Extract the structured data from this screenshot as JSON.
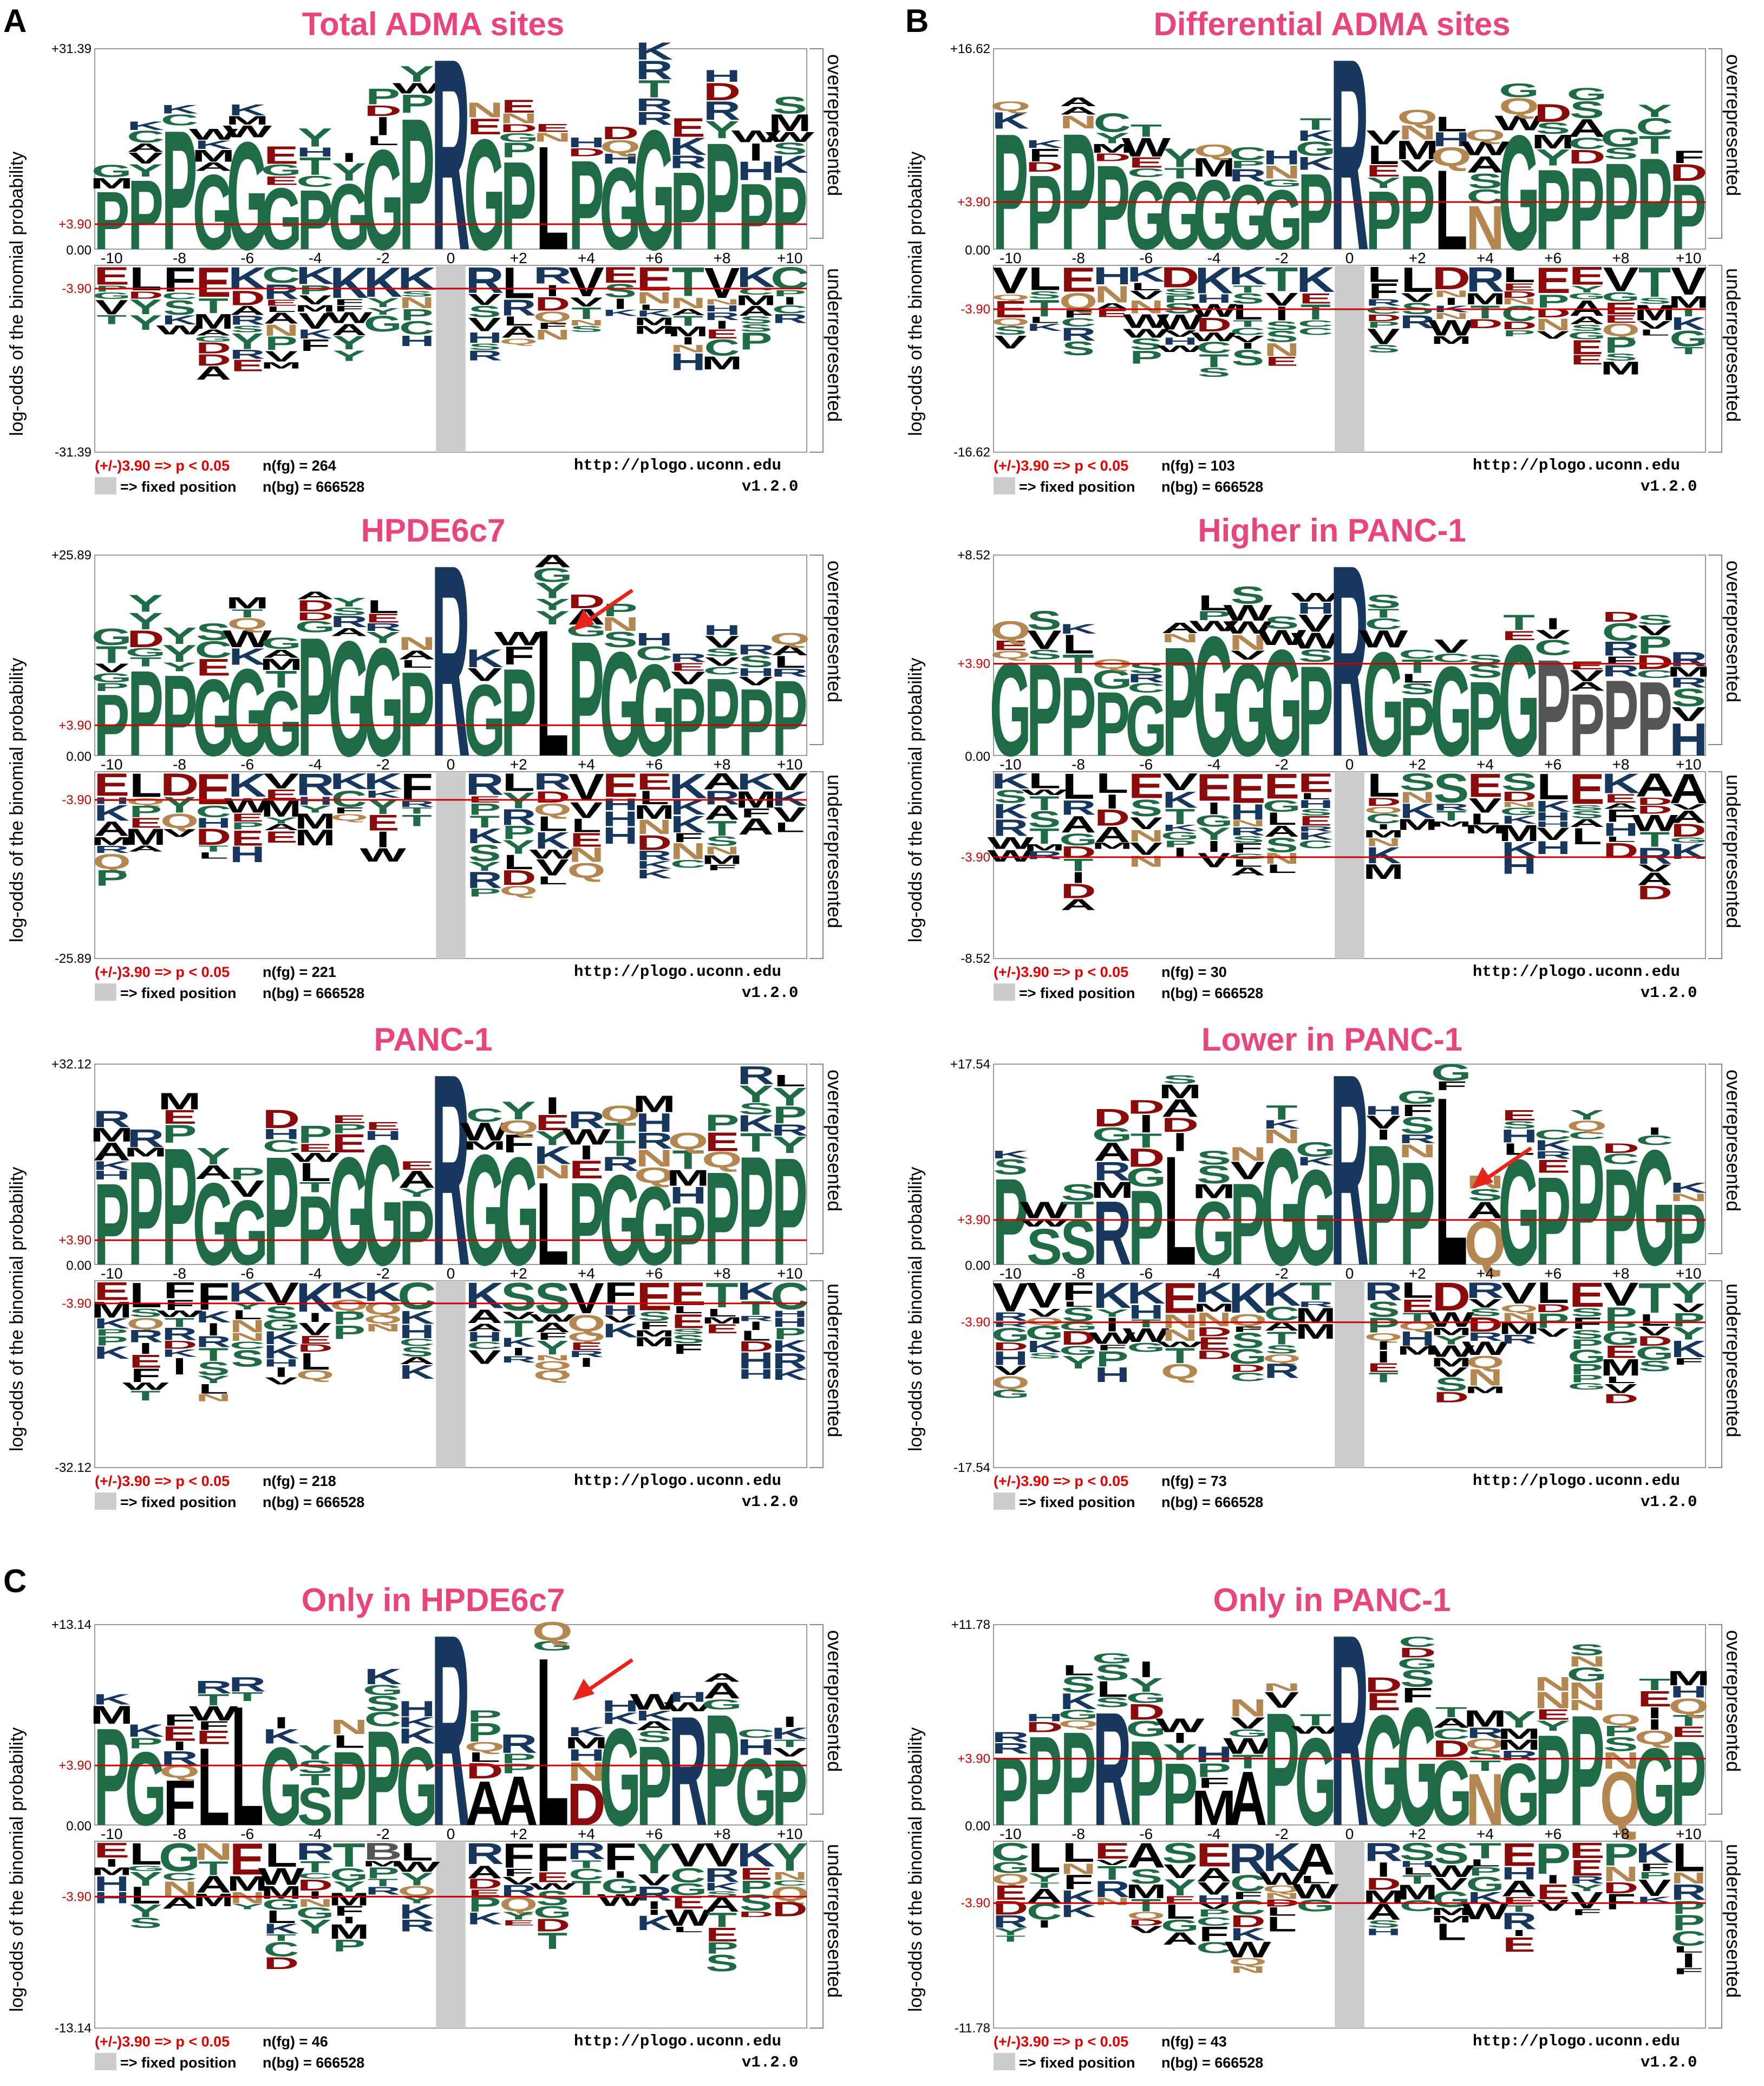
{
  "section_labels": [
    "A",
    "B",
    "C"
  ],
  "common": {
    "ylabel": "log-odds of the binomial probability",
    "over_label": "overrepresented",
    "under_label": "underrepresented",
    "sig_text": "(+/-)3.90 => p < 0.05",
    "fixed_text": "=> fixed position",
    "nbg_text": "n(bg) = 666528",
    "url": "http://plogo.uconn.edu",
    "version": "v1.2.0",
    "threshold_pos": "+3.90",
    "threshold_neg": "-3.90",
    "zero": "0.00"
  },
  "colors": {
    "title": "#e8457f",
    "threshold_line": "#cc0000",
    "fixed_column": "#cccccc",
    "green": "#1e6b45",
    "navy": "#17375e",
    "black": "#000000",
    "darkred": "#8b0a0a",
    "tan": "#b48650",
    "blue": "#3a6ea5",
    "gray": "#555555",
    "arrow": "#e8241a"
  },
  "chart_data": [
    {
      "type": "sequence-logo",
      "title": "Total ADMA sites",
      "ymax_label": "+31.39",
      "ymin_label": "-31.39",
      "ylim": [
        -31.39,
        31.39
      ],
      "nfg": "n(fg) = 264",
      "positions": [
        "-10",
        "-8",
        "-6",
        "-4",
        "-2",
        "0",
        "+2",
        "+4",
        "+6",
        "+8",
        "+10"
      ],
      "fixed_position": 0,
      "over_top": [
        "P",
        "P",
        "P",
        "G",
        "G",
        "G",
        "P",
        "G",
        "G",
        "P",
        "R",
        "G",
        "P",
        "L",
        "P",
        "G",
        "G",
        "P",
        "P",
        "P",
        "P"
      ],
      "under_top": [
        "E",
        "L",
        "F",
        "E",
        "K",
        "C",
        "K",
        "K",
        "K",
        "K",
        "R",
        "R",
        "L",
        "R",
        "V",
        "E",
        "E",
        "T",
        "V",
        "K",
        "C"
      ],
      "arrow": false
    },
    {
      "type": "sequence-logo",
      "title": "Differential ADMA sites",
      "ymax_label": "+16.62",
      "ymin_label": "-16.62",
      "ylim": [
        -16.62,
        16.62
      ],
      "nfg": "n(fg) = 103",
      "positions": [
        "-10",
        "-8",
        "-6",
        "-4",
        "-2",
        "0",
        "+2",
        "+4",
        "+6",
        "+8",
        "+10"
      ],
      "fixed_position": 0,
      "over_top": [
        "P",
        "P",
        "P",
        "P",
        "G",
        "G",
        "G",
        "G",
        "G",
        "P",
        "R",
        "P",
        "P",
        "L",
        "N",
        "G",
        "P",
        "P",
        "P",
        "P",
        "P"
      ],
      "under_top": [
        "V",
        "L",
        "E",
        "H",
        "K",
        "D",
        "K",
        "K",
        "T",
        "K",
        "R",
        "L",
        "L",
        "D",
        "R",
        "L",
        "E",
        "E",
        "V",
        "T",
        "V"
      ],
      "arrow": false
    },
    {
      "type": "sequence-logo",
      "title": "HPDE6c7",
      "ymax_label": "+25.89",
      "ymin_label": "-25.89",
      "ylim": [
        -25.89,
        25.89
      ],
      "nfg": "n(fg) = 221",
      "positions": [
        "-10",
        "-8",
        "-6",
        "-4",
        "-2",
        "0",
        "+2",
        "+4",
        "+6",
        "+8",
        "+10"
      ],
      "fixed_position": 0,
      "over_top": [
        "P",
        "P",
        "P",
        "G",
        "G",
        "G",
        "P",
        "G",
        "G",
        "P",
        "R",
        "G",
        "P",
        "L",
        "P",
        "G",
        "G",
        "P",
        "P",
        "P",
        "P"
      ],
      "under_top": [
        "E",
        "L",
        "D",
        "E",
        "K",
        "V",
        "R",
        "K",
        "K",
        "F",
        "R",
        "R",
        "L",
        "R",
        "V",
        "E",
        "E",
        "K",
        "A",
        "K",
        "V"
      ],
      "arrow": true
    },
    {
      "type": "sequence-logo",
      "title": "Higher in PANC-1",
      "ymax_label": "+8.52",
      "ymin_label": "-8.52",
      "ylim": [
        -8.52,
        8.52
      ],
      "nfg": "n(fg) = 30",
      "positions": [
        "-10",
        "-8",
        "-6",
        "-4",
        "-2",
        "0",
        "+2",
        "+4",
        "+6",
        "+8",
        "+10"
      ],
      "fixed_position": 0,
      "over_top": [
        "G",
        "P",
        "P",
        "P",
        "G",
        "P",
        "G",
        "G",
        "G",
        "P",
        "R",
        "G",
        "P",
        "G",
        "P",
        "G",
        "P",
        "P",
        "P",
        "P",
        "H"
      ],
      "under_top": [
        "K",
        "L",
        "L",
        "L",
        "E",
        "V",
        "E",
        "E",
        "E",
        "E",
        "R",
        "L",
        "S",
        "S",
        "E",
        "S",
        "L",
        "E",
        "K",
        "A",
        "A"
      ],
      "arrow": false
    },
    {
      "type": "sequence-logo",
      "title": "PANC-1",
      "ymax_label": "+32.12",
      "ymin_label": "-32.12",
      "ylim": [
        -32.12,
        32.12
      ],
      "nfg": "n(fg) = 218",
      "positions": [
        "-10",
        "-8",
        "-6",
        "-4",
        "-2",
        "0",
        "+2",
        "+4",
        "+6",
        "+8",
        "+10"
      ],
      "fixed_position": 0,
      "over_top": [
        "P",
        "P",
        "P",
        "G",
        "G",
        "P",
        "P",
        "G",
        "G",
        "P",
        "R",
        "G",
        "G",
        "L",
        "P",
        "G",
        "G",
        "P",
        "P",
        "P",
        "P"
      ],
      "under_top": [
        "E",
        "L",
        "F",
        "F",
        "K",
        "V",
        "K",
        "K",
        "K",
        "C",
        "R",
        "K",
        "S",
        "S",
        "V",
        "F",
        "E",
        "E",
        "T",
        "K",
        "C"
      ],
      "arrow": false
    },
    {
      "type": "sequence-logo",
      "title": "Lower in PANC-1",
      "ymax_label": "+17.54",
      "ymin_label": "-17.54",
      "ylim": [
        -17.54,
        17.54
      ],
      "nfg": "n(fg) = 73",
      "positions": [
        "-10",
        "-8",
        "-6",
        "-4",
        "-2",
        "0",
        "+2",
        "+4",
        "+6",
        "+8",
        "+10"
      ],
      "fixed_position": 0,
      "over_top": [
        "P",
        "S",
        "S",
        "R",
        "P",
        "L",
        "G",
        "P",
        "G",
        "G",
        "R",
        "P",
        "P",
        "L",
        "Q",
        "G",
        "P",
        "P",
        "P",
        "G",
        "P"
      ],
      "under_top": [
        "V",
        "V",
        "F",
        "K",
        "K",
        "E",
        "K",
        "K",
        "K",
        "T",
        "R",
        "R",
        "L",
        "D",
        "R",
        "V",
        "L",
        "E",
        "V",
        "T",
        "Y"
      ],
      "arrow": true
    },
    {
      "type": "sequence-logo",
      "title": "Only in HPDE6c7",
      "ymax_label": "+13.14",
      "ymin_label": "-13.14",
      "ylim": [
        -13.14,
        13.14
      ],
      "nfg": "n(fg) = 46",
      "positions": [
        "-10",
        "-8",
        "-6",
        "-4",
        "-2",
        "0",
        "+2",
        "+4",
        "+6",
        "+8",
        "+10"
      ],
      "fixed_position": 0,
      "over_top": [
        "P",
        "G",
        "F",
        "L",
        "L",
        "G",
        "S",
        "P",
        "P",
        "G",
        "R",
        "A",
        "A",
        "L",
        "D",
        "G",
        "P",
        "R",
        "P",
        "G",
        "P"
      ],
      "under_top": [
        "E",
        "L",
        "G",
        "N",
        "E",
        "L",
        "R",
        "T",
        "B",
        "L",
        "R",
        "R",
        "F",
        "F",
        "R",
        "F",
        "Y",
        "V",
        "V",
        "K",
        "Y"
      ],
      "arrow": true
    },
    {
      "type": "sequence-logo",
      "title": "Only in PANC-1",
      "ymax_label": "+11.78",
      "ymin_label": "-11.78",
      "ylim": [
        -11.78,
        11.78
      ],
      "nfg": "n(fg) = 43",
      "positions": [
        "-10",
        "-8",
        "-6",
        "-4",
        "-2",
        "0",
        "+2",
        "+4",
        "+6",
        "+8",
        "+10"
      ],
      "fixed_position": 0,
      "over_top": [
        "P",
        "P",
        "P",
        "R",
        "P",
        "P",
        "M",
        "A",
        "P",
        "G",
        "R",
        "G",
        "G",
        "G",
        "N",
        "G",
        "P",
        "P",
        "Q",
        "G",
        "P"
      ],
      "under_top": [
        "C",
        "L",
        "L",
        "E",
        "A",
        "S",
        "E",
        "R",
        "K",
        "A",
        "R",
        "R",
        "S",
        "S",
        "T",
        "E",
        "P",
        "E",
        "P",
        "K",
        "L"
      ],
      "arrow": false
    }
  ]
}
